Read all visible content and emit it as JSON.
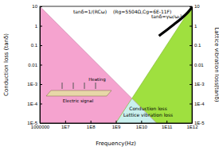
{
  "chart_data": {
    "type": "line",
    "log": true,
    "xlabel": "Frequency(Hz)",
    "ylabel": "Conduction loss (tanδ)",
    "y2label": "Lattice vibration loss(tanδ)",
    "xlim": [
      1000000,
      1000000000000
    ],
    "xticks": [
      1000000,
      {
        "value": 10000000,
        "label": "1E7"
      },
      {
        "value": 100000000,
        "label": "1E8"
      },
      {
        "value": 1000000000,
        "label": "1E9"
      },
      {
        "value": 10000000000,
        "label": "1E10"
      },
      {
        "value": 100000000000,
        "label": "1E11"
      },
      {
        "value": 1000000000000,
        "label": "1E12"
      }
    ],
    "ylim": [
      1e-05,
      10
    ],
    "yticks": [
      {
        "value": 1e-05,
        "label": "1E-5"
      },
      {
        "value": 0.0001,
        "label": "1E-4"
      },
      {
        "value": 0.001,
        "label": "1E-3"
      },
      0.01,
      0.1,
      1,
      10
    ],
    "y2lim": [
      1e-05,
      10
    ],
    "y2ticks": [
      {
        "value": 1e-05,
        "label": "1E-5"
      },
      {
        "value": 0.0001,
        "label": "1E-4"
      },
      {
        "value": 0.001,
        "label": "1E-3"
      },
      0.01,
      0.1,
      1,
      10
    ],
    "series": [
      {
        "name": "tanδ=1/(RCω)",
        "type": "area",
        "color": "#f5a3cf",
        "x": [
          1000000,
          40000000000
        ],
        "values": [
          10,
          1e-05
        ]
      },
      {
        "type": "area",
        "color": "#9fe03f",
        "axis": "y2",
        "x": [
          1000000000,
          1000000000000
        ],
        "values": [
          1e-05,
          10
        ]
      },
      {
        "name": "tanδ=γω/ωₜ²",
        "type": "line",
        "color": "#000000",
        "axis": "y2",
        "x": [
          50000000000,
          100000000000,
          200000000000,
          400000000000,
          700000000000,
          1000000000000
        ],
        "values": [
          0.3,
          0.6,
          1.2,
          2.5,
          5,
          9
        ]
      }
    ],
    "annotations": [
      "(Rg=5504Ω,Cg=6E-11F)",
      "Conduction loss",
      "Lattice vibration loss",
      "Heating",
      "Electric signal"
    ]
  }
}
